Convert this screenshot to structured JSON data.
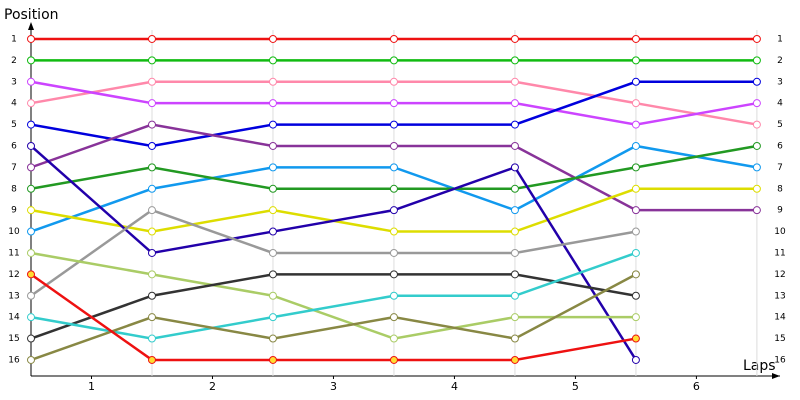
{
  "chart_data": {
    "type": "lap-chart",
    "y_label": "Position",
    "x_label": "Laps",
    "x": [
      0,
      1,
      2,
      3,
      4,
      5,
      6
    ],
    "xlim": [
      0,
      6.1
    ],
    "xticks": [
      {
        "value": 0.5,
        "label": "1"
      },
      {
        "value": 1.5,
        "label": "2"
      },
      {
        "value": 2.5,
        "label": "3"
      },
      {
        "value": 3.5,
        "label": "4"
      },
      {
        "value": 4.5,
        "label": "5"
      },
      {
        "value": 5.5,
        "label": "6"
      }
    ],
    "ylim": [
      16.75,
      0.3
    ],
    "yticks": [
      1,
      2,
      3,
      4,
      5,
      6,
      7,
      8,
      9,
      10,
      11,
      12,
      13,
      14,
      15,
      16
    ],
    "grid": true,
    "series": [
      {
        "color": "#ee1111",
        "values": [
          1,
          1,
          1,
          1,
          1,
          1,
          1
        ]
      },
      {
        "color": "#11bb11",
        "values": [
          2,
          2,
          2,
          2,
          2,
          2,
          2
        ]
      },
      {
        "color": "#ff88aa",
        "values": [
          4,
          3,
          3,
          3,
          3,
          4,
          5
        ]
      },
      {
        "color": "#cc44ff",
        "values": [
          3,
          4,
          4,
          4,
          4,
          5,
          4
        ]
      },
      {
        "color": "#0000dd",
        "values": [
          5,
          6,
          5,
          5,
          5,
          3,
          3
        ]
      },
      {
        "color": "#883399",
        "values": [
          7,
          5,
          6,
          6,
          6,
          9,
          9
        ]
      },
      {
        "color": "#1199ee",
        "values": [
          10,
          8,
          7,
          7,
          9,
          6,
          7
        ]
      },
      {
        "color": "#229922",
        "values": [
          8,
          7,
          8,
          8,
          8,
          7,
          6
        ]
      },
      {
        "color": "#dddd00",
        "values": [
          9,
          10,
          9,
          10,
          10,
          8,
          8
        ]
      },
      {
        "color": "#2200aa",
        "values": [
          6,
          11,
          10,
          9,
          7,
          16,
          null
        ]
      },
      {
        "color": "#999999",
        "values": [
          13,
          9,
          11,
          11,
          11,
          10,
          null
        ]
      },
      {
        "color": "#aacc66",
        "values": [
          11,
          12,
          13,
          15,
          14,
          14,
          null
        ]
      },
      {
        "color": "#333333",
        "values": [
          15,
          13,
          12,
          12,
          12,
          13,
          null
        ]
      },
      {
        "color": "#33cccc",
        "values": [
          14,
          15,
          14,
          13,
          13,
          11,
          null
        ]
      },
      {
        "color": "#888844",
        "values": [
          16,
          14,
          15,
          14,
          15,
          12,
          null
        ]
      },
      {
        "color": "#ee1111",
        "marker_fill": "#ffdd33",
        "values": [
          12,
          16,
          16,
          16,
          16,
          15,
          null
        ]
      }
    ]
  }
}
